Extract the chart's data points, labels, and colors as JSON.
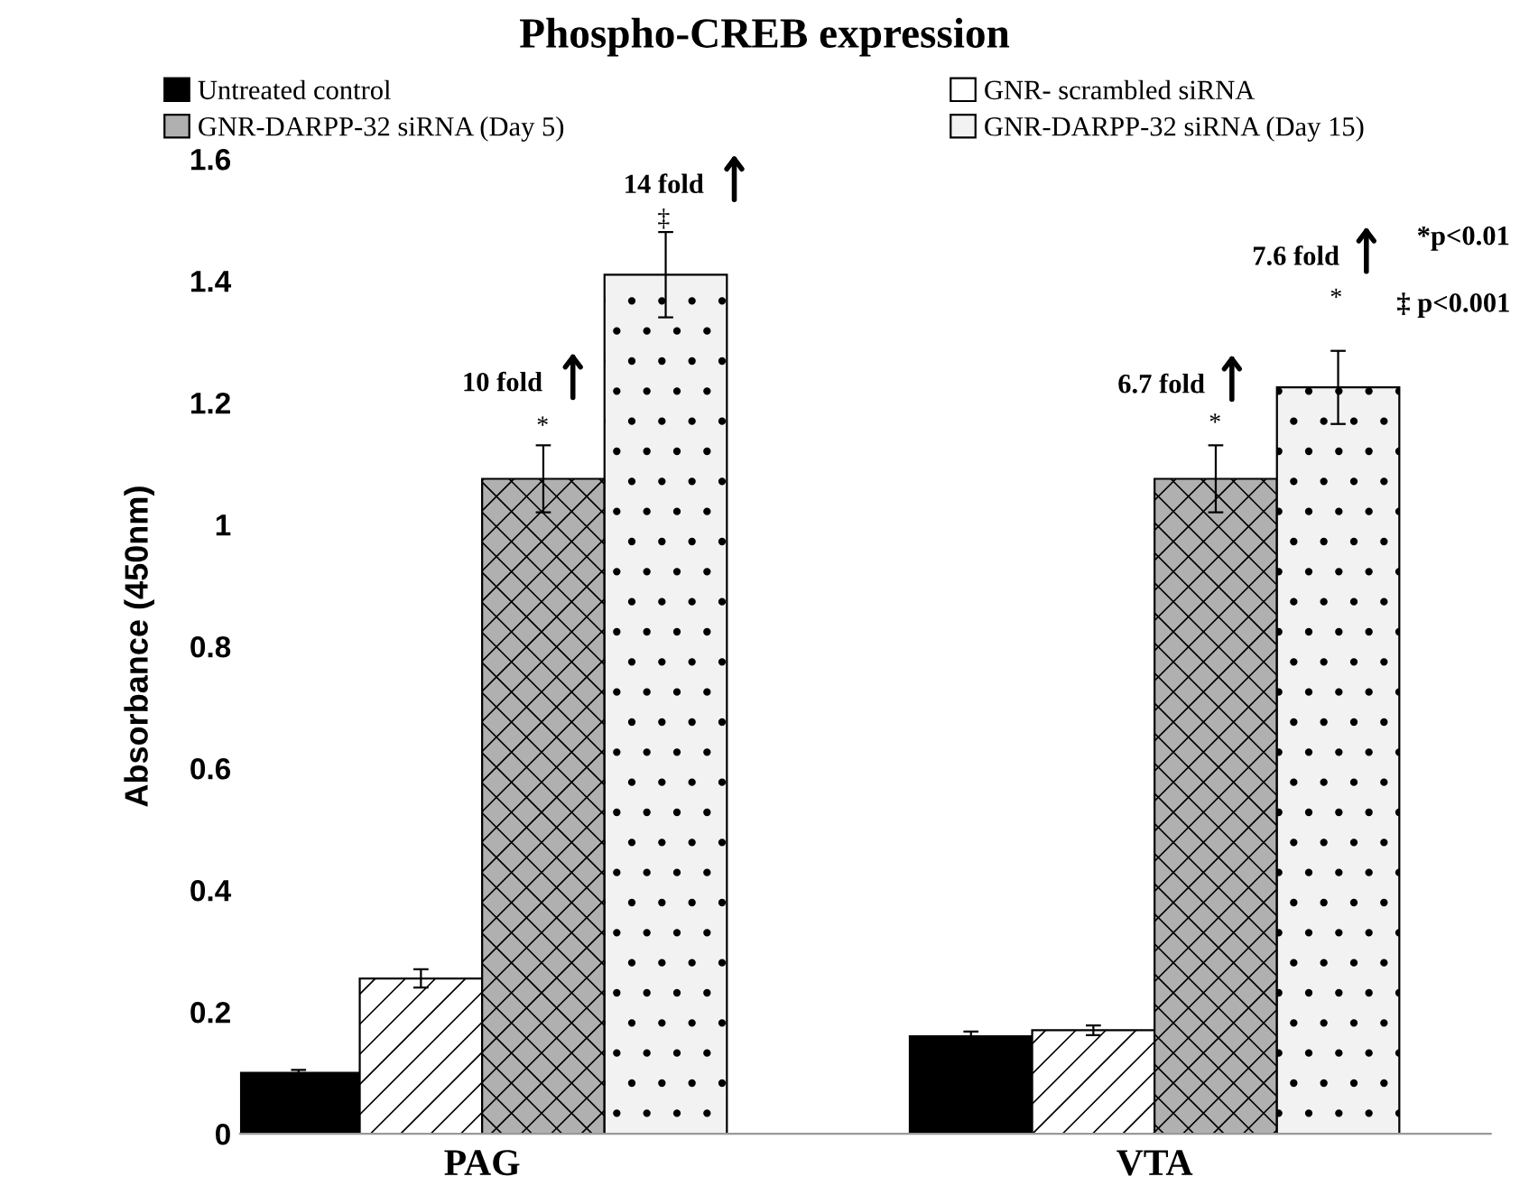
{
  "chart_data": {
    "type": "bar",
    "title": "Phospho-CREB expression",
    "ylabel": "Absorbance (450nm)",
    "categories": [
      "PAG",
      "VTA"
    ],
    "series": [
      {
        "name": "Untreated control",
        "color": "#000000",
        "values": [
          0.1,
          0.16
        ],
        "errors": [
          0.005,
          0.008
        ]
      },
      {
        "name": "GNR- scrambled siRNA",
        "color": "#ffffff",
        "values": [
          0.255,
          0.17
        ],
        "errors": [
          0.015,
          0.008
        ]
      },
      {
        "name": "GNR-DARPP-32 siRNA (Day 5)",
        "color": "#b0b0b0",
        "values": [
          1.075,
          1.075
        ],
        "errors": [
          0.055,
          0.055
        ]
      },
      {
        "name": "GNR-DARPP-32 siRNA (Day 15)",
        "color": "#f2f2f2",
        "values": [
          1.41,
          1.225
        ],
        "errors": [
          0.07,
          0.06
        ]
      }
    ],
    "ylim": [
      0,
      1.6
    ],
    "yticks": [
      0,
      0.2,
      0.4,
      0.6,
      0.8,
      1,
      1.2,
      1.4,
      1.6
    ],
    "grid": false,
    "legend": "top",
    "annotations": [
      "10 fold",
      "14 fold",
      "6.7 fold",
      "7.6 fold",
      "*",
      "‡",
      "*",
      "*",
      "*p<0.01",
      "‡ p<0.001"
    ]
  }
}
